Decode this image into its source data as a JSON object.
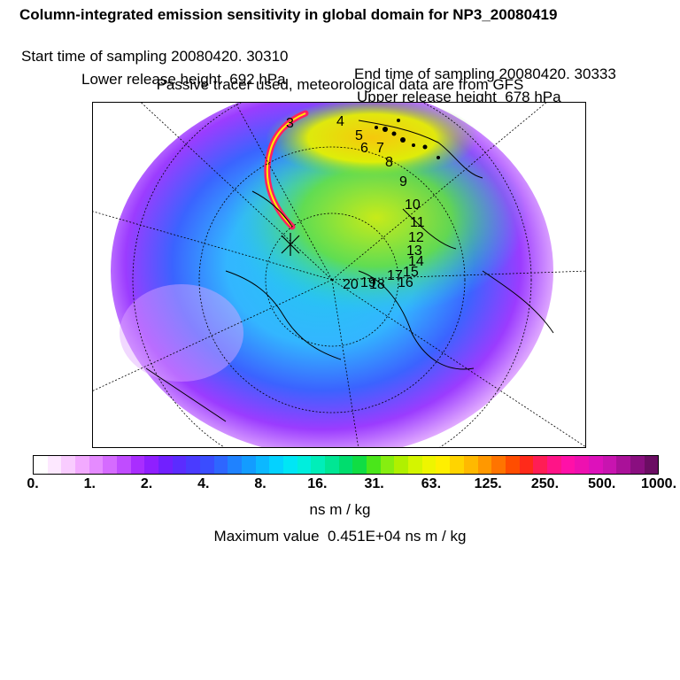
{
  "header": {
    "title": "Column-integrated emission sensitivity in global domain for NP3_20080419",
    "start_time": "Start time of sampling 20080420. 30310",
    "end_time": "End time of sampling 20080420. 30333",
    "lower_release": "Lower release height  692 hPa",
    "upper_release": "Upper release height  678 hPa",
    "tracer_note": "Passive tracer used, meteorological data are from GFS"
  },
  "map": {
    "projection": "north-polar-stereographic",
    "track_labels": [
      "3",
      "4",
      "5",
      "6",
      "7",
      "8",
      "9",
      "10",
      "11",
      "12",
      "13",
      "14",
      "15",
      "16",
      "17",
      "18",
      "19",
      "20"
    ],
    "field_colors": {
      "low": "#e6d7ff",
      "mid": "#22ccee",
      "high": "#ff2200"
    }
  },
  "colorbar": {
    "colors": [
      "#ffffff",
      "#fde8ff",
      "#f9ccff",
      "#f2aaff",
      "#e58bff",
      "#d56bff",
      "#c04cff",
      "#a92dff",
      "#8f1fff",
      "#7120ff",
      "#5b2cff",
      "#4a3bff",
      "#3a4dff",
      "#2e66ff",
      "#1f82ff",
      "#139cff",
      "#0cb8ff",
      "#04d2ff",
      "#00e6f5",
      "#00eedd",
      "#00eeb9",
      "#00e694",
      "#00dd6e",
      "#10dd44",
      "#4ae61a",
      "#86ee10",
      "#b0f000",
      "#d4f500",
      "#eef500",
      "#ffef00",
      "#ffd400",
      "#ffb900",
      "#ff9800",
      "#ff7400",
      "#ff4d00",
      "#ff2a1a",
      "#ff1d55",
      "#ff1487",
      "#ff10a8",
      "#ee10b0",
      "#dd11bb",
      "#c814b0",
      "#aa1199",
      "#8a0f80",
      "#6b0d63"
    ],
    "tick_labels": [
      "0.",
      "1.",
      "2.",
      "4.",
      "8.",
      "16.",
      "31.",
      "63.",
      "125.",
      "250.",
      "500.",
      "1000."
    ],
    "unit": "ns m / kg"
  },
  "max_value": "Maximum value  0.451E+04 ns m / kg"
}
